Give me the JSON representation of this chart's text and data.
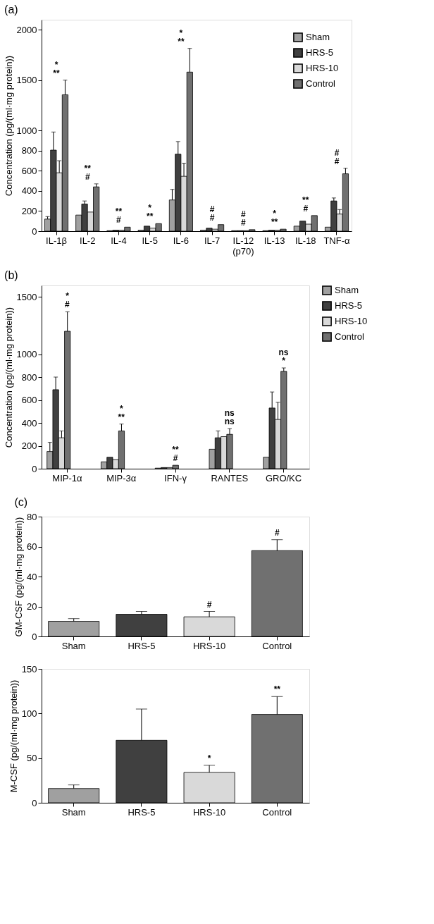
{
  "chart_data": [
    {
      "type": "bar",
      "title": "(a)",
      "ylabel": "Concentration (pg/(ml·mg protein))",
      "legend": "top right",
      "categories": [
        "IL-1β",
        "IL-2",
        "IL-4",
        "IL-5",
        "IL-6",
        "IL-7",
        "IL-12 (p70)",
        "IL-13",
        "IL-18",
        "TNF-α"
      ],
      "ylim": [
        0,
        2100
      ],
      "yticks": [
        0,
        200,
        400,
        600,
        800,
        1000,
        1500,
        2000
      ],
      "series": [
        {
          "name": "Sham",
          "color": "#a0a0a0",
          "values": [
            120,
            160,
            5,
            10,
            310,
            10,
            5,
            5,
            50,
            40
          ],
          "errors": [
            [
              120,
              145
            ],
            null,
            null,
            null,
            [
              310,
              415
            ],
            null,
            null,
            null,
            null,
            null
          ]
        },
        {
          "name": "HRS-5",
          "color": "#404040",
          "values": [
            805,
            270,
            10,
            50,
            765,
            30,
            5,
            10,
            100,
            300
          ],
          "errors": [
            [
              805,
              985
            ],
            [
              270,
              300
            ],
            null,
            null,
            [
              765,
              890
            ],
            null,
            null,
            null,
            null,
            [
              300,
              330
            ]
          ]
        },
        {
          "name": "HRS-10",
          "color": "#d9d9d9",
          "values": [
            580,
            190,
            10,
            30,
            545,
            20,
            5,
            10,
            70,
            170
          ],
          "errors": [
            [
              580,
              700
            ],
            null,
            null,
            null,
            [
              545,
              675
            ],
            null,
            null,
            null,
            null,
            [
              170,
              215
            ]
          ]
        },
        {
          "name": "Control",
          "color": "#707070",
          "values": [
            1355,
            440,
            40,
            75,
            1580,
            65,
            15,
            20,
            155,
            570
          ],
          "errors": [
            [
              1355,
              1500
            ],
            [
              440,
              470
            ],
            null,
            null,
            [
              1580,
              1815
            ],
            null,
            null,
            null,
            null,
            [
              570,
              625
            ]
          ]
        }
      ],
      "annotations": [
        "*",
        "**",
        "**",
        "#",
        "**",
        "#",
        "*",
        "**",
        "*",
        "**",
        "#",
        "#",
        "#",
        "#",
        "*",
        "**",
        "**",
        "#",
        "#",
        "#"
      ]
    },
    {
      "type": "bar",
      "title": "(b)",
      "ylabel": "Concentration (pg/(ml·mg protein))",
      "legend": "right",
      "categories": [
        "MIP-1α",
        "MIP-3α",
        "IFN-γ",
        "RANTES",
        "GRO/KC"
      ],
      "ylim": [
        0,
        1600
      ],
      "yticks": [
        0,
        200,
        400,
        600,
        800,
        1000,
        1500
      ],
      "series": [
        {
          "name": "Sham",
          "color": "#a0a0a0",
          "values": [
            150,
            60,
            5,
            170,
            100
          ],
          "errors": [
            [
              150,
              230
            ],
            null,
            null,
            null,
            null
          ]
        },
        {
          "name": "HRS-5",
          "color": "#404040",
          "values": [
            690,
            100,
            10,
            270,
            530
          ],
          "errors": [
            [
              690,
              800
            ],
            null,
            null,
            [
              270,
              330
            ],
            [
              530,
              670
            ]
          ]
        },
        {
          "name": "HRS-10",
          "color": "#d9d9d9",
          "values": [
            270,
            80,
            10,
            280,
            430
          ],
          "errors": [
            [
              270,
              330
            ],
            null,
            null,
            null,
            [
              430,
              580
            ]
          ]
        },
        {
          "name": "Control",
          "color": "#707070",
          "values": [
            1200,
            330,
            30,
            300,
            850
          ],
          "errors": [
            [
              1200,
              1370
            ],
            [
              330,
              390
            ],
            null,
            [
              300,
              350
            ],
            [
              850,
              880
            ]
          ]
        }
      ],
      "annotations": [
        "*",
        "#",
        "*",
        "**",
        "**",
        "#",
        "ns",
        "ns",
        "ns",
        "*"
      ]
    },
    {
      "type": "bar",
      "title": "(c)",
      "ylabel": "GM-CSF (pg/(ml·mg protein))",
      "categories": [
        "Sham",
        "HRS-5",
        "HRS-10",
        "Control"
      ],
      "ylim": [
        0,
        80
      ],
      "yticks": [
        0,
        20,
        40,
        60,
        80
      ],
      "values": [
        10.1,
        14.8,
        13.1,
        57.3
      ],
      "errors": [
        [
          10.1,
          11.9
        ],
        [
          14.8,
          16.7
        ],
        [
          13.1,
          16.7
        ],
        [
          57.3,
          64.6
        ]
      ],
      "colors": [
        "#a0a0a0",
        "#404040",
        "#d9d9d9",
        "#707070"
      ],
      "annotations": [
        "#",
        "#"
      ]
    },
    {
      "type": "bar",
      "ylabel": "M-CSF (pg/(ml·mg protein))",
      "categories": [
        "Sham",
        "HRS-5",
        "HRS-10",
        "Control"
      ],
      "ylim": [
        0,
        150
      ],
      "yticks": [
        0,
        50,
        100,
        150
      ],
      "values": [
        16,
        70,
        34,
        99
      ],
      "errors": [
        [
          16,
          20
        ],
        [
          70,
          105
        ],
        [
          34,
          42
        ],
        [
          99,
          119
        ]
      ],
      "colors": [
        "#a0a0a0",
        "#404040",
        "#d9d9d9",
        "#707070"
      ],
      "annotations": [
        "*",
        "**"
      ]
    }
  ]
}
